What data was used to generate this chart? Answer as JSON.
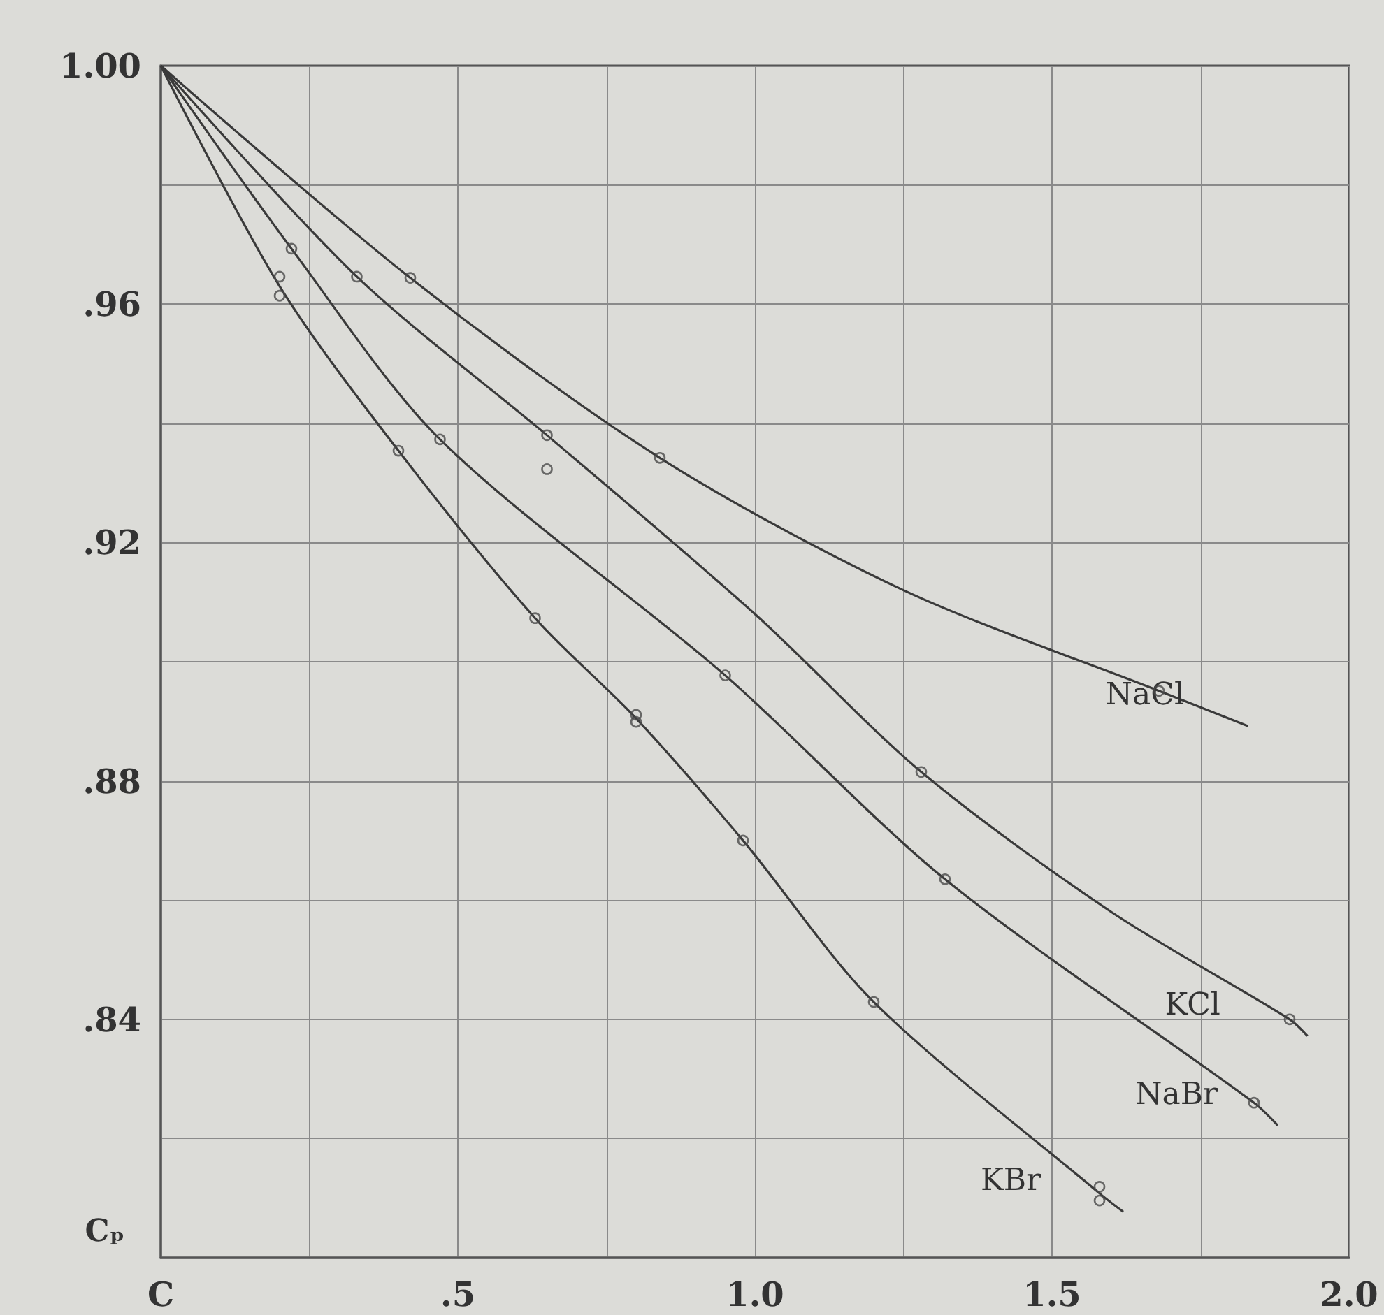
{
  "chart_data": {
    "type": "line",
    "xlabel": "C",
    "ylabel": "Cₚ",
    "xlim": [
      0,
      2.0
    ],
    "ylim": [
      0.8,
      1.0
    ],
    "xticks": [
      {
        "value": 0,
        "label": null
      },
      {
        "value": 0.25,
        "label": null
      },
      {
        "value": 0.5,
        "label": ".5"
      },
      {
        "value": 0.75,
        "label": null
      },
      {
        "value": 1.0,
        "label": "1.0"
      },
      {
        "value": 1.25,
        "label": null
      },
      {
        "value": 1.5,
        "label": "1.5"
      },
      {
        "value": 1.75,
        "label": null
      },
      {
        "value": 2.0,
        "label": "2.0"
      }
    ],
    "yticks": [
      {
        "value": 0.8,
        "label": null
      },
      {
        "value": 0.82,
        "label": null
      },
      {
        "value": 0.84,
        "label": ".84"
      },
      {
        "value": 0.86,
        "label": null
      },
      {
        "value": 0.88,
        "label": ".88"
      },
      {
        "value": 0.9,
        "label": null
      },
      {
        "value": 0.92,
        "label": ".92"
      },
      {
        "value": 0.94,
        "label": null
      },
      {
        "value": 0.96,
        "label": ".96"
      },
      {
        "value": 0.98,
        "label": null
      },
      {
        "value": 1.0,
        "label": "1.00"
      }
    ],
    "grid": true,
    "line_style": "solid",
    "series": [
      {
        "name": "NaCl",
        "color": "#3a3a3a",
        "marker": "none",
        "x": [
          0,
          0.42,
          0.84,
          1.25,
          1.68,
          1.83
        ],
        "values": [
          1.0,
          0.9644,
          0.9342,
          0.912,
          0.8951,
          0.8892
        ]
      },
      {
        "name": "KCl",
        "color": "#3a3a3a",
        "marker": "none",
        "x": [
          0,
          0.33,
          0.65,
          1.0,
          1.28,
          1.6,
          1.9,
          1.93
        ],
        "values": [
          1.0,
          0.9646,
          0.938,
          0.908,
          0.8815,
          0.858,
          0.84,
          0.8372
        ]
      },
      {
        "name": "NaBr",
        "color": "#3a3a3a",
        "marker": "none",
        "x": [
          0,
          0.22,
          0.47,
          0.95,
          1.32,
          1.84,
          1.88
        ],
        "values": [
          1.0,
          0.9693,
          0.9373,
          0.8977,
          0.8635,
          0.826,
          0.8222
        ]
      },
      {
        "name": "KBr",
        "color": "#3a3a3a",
        "marker": "none",
        "x": [
          0,
          0.2,
          0.4,
          0.63,
          0.8,
          0.98,
          1.2,
          1.58,
          1.62
        ],
        "values": [
          1.0,
          0.963,
          0.9354,
          0.9073,
          0.8905,
          0.87,
          0.8429,
          0.8108,
          0.8077
        ]
      },
      {
        "type": "scatter",
        "color": "#4a4a4a",
        "marker": "circle",
        "x": [
          0.42,
          0.84,
          1.68,
          0.33,
          0.65,
          1.28,
          1.9,
          0.22,
          0.47,
          0.65,
          0.95,
          1.32,
          1.84,
          0.2,
          0.2,
          0.4,
          0.63,
          0.8,
          0.8,
          0.98,
          1.2,
          1.58,
          1.58
        ],
        "values": [
          0.9644,
          0.9342,
          0.8951,
          0.9646,
          0.938,
          0.8815,
          0.84,
          0.9693,
          0.9373,
          0.9323,
          0.8977,
          0.8635,
          0.826,
          0.9646,
          0.9614,
          0.9354,
          0.9073,
          0.8911,
          0.8899,
          0.87,
          0.8429,
          0.8119,
          0.8096
        ]
      }
    ]
  }
}
